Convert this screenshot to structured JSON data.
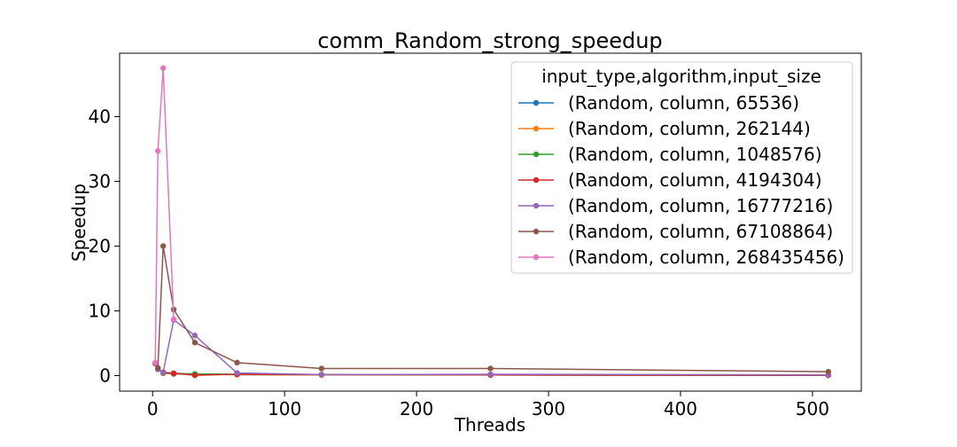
{
  "chart_data": {
    "type": "line",
    "title": "comm_Random_strong_speedup",
    "xlabel": "Threads",
    "ylabel": "Speedup",
    "xlim": [
      -25,
      537
    ],
    "ylim": [
      -2.4,
      49.8
    ],
    "xticks": [
      0,
      100,
      200,
      300,
      400,
      500
    ],
    "yticks": [
      0,
      10,
      20,
      30,
      40
    ],
    "grid": false,
    "legend": {
      "title": "input_type,algorithm,input_size",
      "placement": "top-right"
    },
    "series": [
      {
        "name": "(Random, column, 65536)",
        "color": "#1f77b4",
        "x": [
          2,
          4,
          8,
          16,
          32,
          64,
          128,
          256,
          512
        ],
        "y": [
          1.9,
          1.0,
          0.35,
          0.25,
          0.2,
          0.15,
          0.1,
          0.1,
          0.05
        ]
      },
      {
        "name": "(Random, column, 262144)",
        "color": "#ff7f0e",
        "x": [
          2,
          4,
          8,
          16,
          32,
          64,
          128,
          256,
          512
        ],
        "y": [
          1.9,
          1.0,
          0.4,
          0.3,
          0.2,
          0.15,
          0.1,
          0.1,
          0.05
        ]
      },
      {
        "name": "(Random, column, 1048576)",
        "color": "#2ca02c",
        "x": [
          2,
          4,
          8,
          16,
          32,
          64,
          128,
          256,
          512
        ],
        "y": [
          1.9,
          1.0,
          0.5,
          0.35,
          0.25,
          0.2,
          0.15,
          0.1,
          0.05
        ]
      },
      {
        "name": "(Random, column, 4194304)",
        "color": "#d62728",
        "x": [
          2,
          4,
          8,
          16,
          32,
          64,
          128,
          256,
          512
        ],
        "y": [
          1.9,
          1.0,
          0.5,
          0.35,
          0.05,
          0.2,
          0.15,
          0.1,
          0.05
        ]
      },
      {
        "name": "(Random, column, 16777216)",
        "color": "#9467bd",
        "x": [
          2,
          4,
          8,
          16,
          32,
          64,
          128,
          256,
          512
        ],
        "y": [
          1.9,
          1.0,
          0.5,
          8.6,
          6.2,
          0.4,
          0.15,
          0.2,
          0.1
        ]
      },
      {
        "name": "(Random, column, 67108864)",
        "color": "#8c564b",
        "x": [
          2,
          4,
          8,
          16,
          32,
          64,
          128,
          256,
          512
        ],
        "y": [
          1.9,
          1.2,
          20.0,
          10.2,
          5.1,
          2.0,
          1.1,
          1.1,
          0.6
        ]
      },
      {
        "name": "(Random, column, 268435456)",
        "color": "#e377c2",
        "x": [
          2,
          4,
          8,
          16
        ],
        "y": [
          2.0,
          34.7,
          47.5,
          8.7
        ]
      }
    ]
  }
}
